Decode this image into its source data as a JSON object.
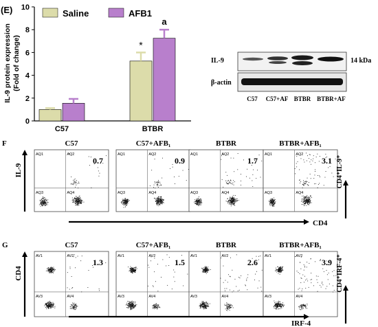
{
  "panel_e_label": "(E)",
  "panel_f_label": "F",
  "panel_g_label": "G",
  "blot": {
    "rows": [
      "IL-9",
      "β-actin"
    ],
    "kda": "14 kDa",
    "lanes": [
      "C57",
      "C57+AF",
      "BTBR",
      "BTBR+AF"
    ]
  },
  "flow_f": {
    "y_axis": "IL-9",
    "x_axis": "CD4",
    "right_label": "CD4⁺IL-9⁺",
    "panels": [
      {
        "title": "C57",
        "value": "0.7"
      },
      {
        "title": "C57+AFB₁",
        "value": "0.9"
      },
      {
        "title": "BTBR",
        "value": "1.7"
      },
      {
        "title": "BTBR+AFB₁",
        "value": "3.1"
      }
    ],
    "quadrants": [
      "AQ1",
      "AQ2",
      "AQ3",
      "AQ4"
    ]
  },
  "flow_g": {
    "y_axis": "CD4",
    "x_axis": "IRF-4",
    "right_label": "CD4⁺IRF-4⁺",
    "panels": [
      {
        "title": "C57",
        "value": "1.3"
      },
      {
        "title": "C57+AFB₁",
        "value": "1.5"
      },
      {
        "title": "BTBR",
        "value": "2.6"
      },
      {
        "title": "BTBR+AFB₁",
        "value": "3.9"
      }
    ],
    "quadrants": [
      "AV1",
      "AV2",
      "AV3",
      "AV4"
    ]
  },
  "colors": {
    "saline": "#dcdcaa",
    "afb1": "#b87fcc",
    "axis": "#000000"
  },
  "chart_data": {
    "type": "bar",
    "categories": [
      "C57",
      "BTBR"
    ],
    "series": [
      {
        "name": "Saline",
        "values": [
          1.0,
          5.25
        ],
        "errors": [
          0.12,
          0.75
        ]
      },
      {
        "name": "AFB1",
        "values": [
          1.55,
          7.25
        ],
        "errors": [
          0.38,
          0.75
        ]
      }
    ],
    "ylabel": "IL-9 protein expression\n(Fold of change)",
    "yticks": [
      0,
      2,
      4,
      6,
      8,
      10
    ],
    "ylim": [
      0,
      10
    ],
    "annotations": [
      "*",
      "a"
    ],
    "legend": "top"
  }
}
